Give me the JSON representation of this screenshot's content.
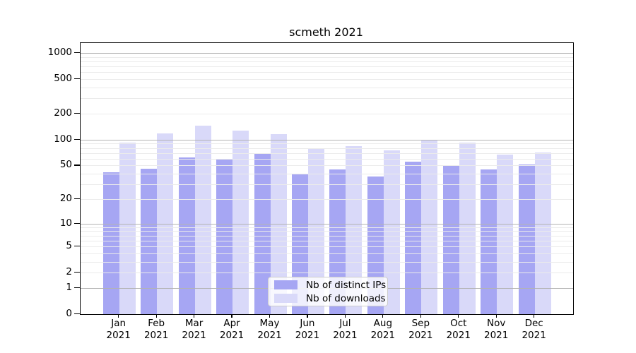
{
  "chart_data": {
    "type": "bar",
    "title": "scmeth 2021",
    "months": [
      "Jan",
      "Feb",
      "Mar",
      "Apr",
      "May",
      "Jun",
      "Jul",
      "Aug",
      "Sep",
      "Oct",
      "Nov",
      "Dec"
    ],
    "year": "2021",
    "categories": [
      "Jan 2021",
      "Feb 2021",
      "Mar 2021",
      "Apr 2021",
      "May 2021",
      "Jun 2021",
      "Jul 2021",
      "Aug 2021",
      "Sep 2021",
      "Oct 2021",
      "Nov 2021",
      "Dec 2021"
    ],
    "series": [
      {
        "name": "Nb of distinct IPs",
        "color": "#a6a6f3",
        "values": [
          42,
          46,
          62,
          60,
          70,
          40,
          45,
          37,
          55,
          50,
          45,
          51
        ]
      },
      {
        "name": "Nb of downloads",
        "color": "#d9d9f9",
        "values": [
          93,
          118,
          144,
          128,
          116,
          80,
          84,
          75,
          98,
          93,
          67,
          71
        ]
      }
    ],
    "yscale": "log10(value+1)",
    "yticks": [
      0,
      1,
      2,
      5,
      10,
      20,
      50,
      100,
      200,
      500,
      1000
    ],
    "ylim": [
      0,
      1000
    ],
    "grid": "horizontal, minor log gridlines drawn over bars",
    "legend_position": "inside bottom-center",
    "colors": {
      "grid_minor": "#ebebeb",
      "grid_major": "#b3b3b3",
      "spine": "#000000",
      "background": "#ffffff"
    }
  }
}
